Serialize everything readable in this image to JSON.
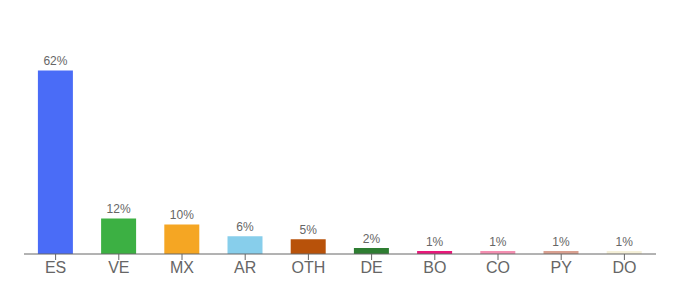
{
  "chart_data": {
    "type": "bar",
    "categories": [
      "ES",
      "VE",
      "MX",
      "AR",
      "OTH",
      "DE",
      "BO",
      "CO",
      "PY",
      "DO"
    ],
    "values": [
      62,
      12,
      10,
      6,
      5,
      2,
      1,
      1,
      1,
      1
    ],
    "value_labels": [
      "62%",
      "12%",
      "10%",
      "6%",
      "5%",
      "2%",
      "1%",
      "1%",
      "1%",
      "1%"
    ],
    "colors": [
      "#4a6cf7",
      "#3cb043",
      "#f5a623",
      "#87ceeb",
      "#b8520a",
      "#2e7d32",
      "#e8197a",
      "#f48fb1",
      "#d9a090",
      "#f5f0d8"
    ],
    "ylim": [
      0,
      75
    ],
    "grid": false,
    "data_labels": true,
    "tick_labels": "x"
  }
}
